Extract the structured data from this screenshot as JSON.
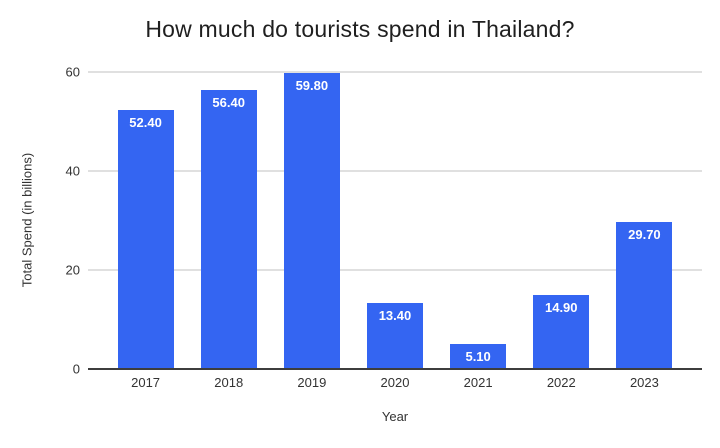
{
  "chart_data": {
    "type": "bar",
    "title": "How much do tourists spend in Thailand?",
    "xlabel": "Year",
    "ylabel": "Total Spend (in billions)",
    "categories": [
      "2017",
      "2018",
      "2019",
      "2020",
      "2021",
      "2022",
      "2023"
    ],
    "values": [
      52.4,
      56.4,
      59.8,
      13.4,
      5.1,
      14.9,
      29.7
    ],
    "bar_labels": [
      "52.40",
      "56.40",
      "59.80",
      "13.40",
      "5.10",
      "14.90",
      "29.70"
    ],
    "ylim": [
      0,
      60
    ],
    "ytick_values": [
      0,
      20,
      40,
      60
    ],
    "ytick_labels": [
      "0",
      "20",
      "40",
      "60"
    ],
    "grid": true,
    "legend_position": "none",
    "colors": {
      "bar": "#3465f2",
      "bar_label": "#ffffff",
      "gridline": "#e0e0e0",
      "axis_line": "#3d3d3d",
      "tick_text": "#333333",
      "title_text": "#1f1f1f",
      "background": "#ffffff"
    }
  }
}
